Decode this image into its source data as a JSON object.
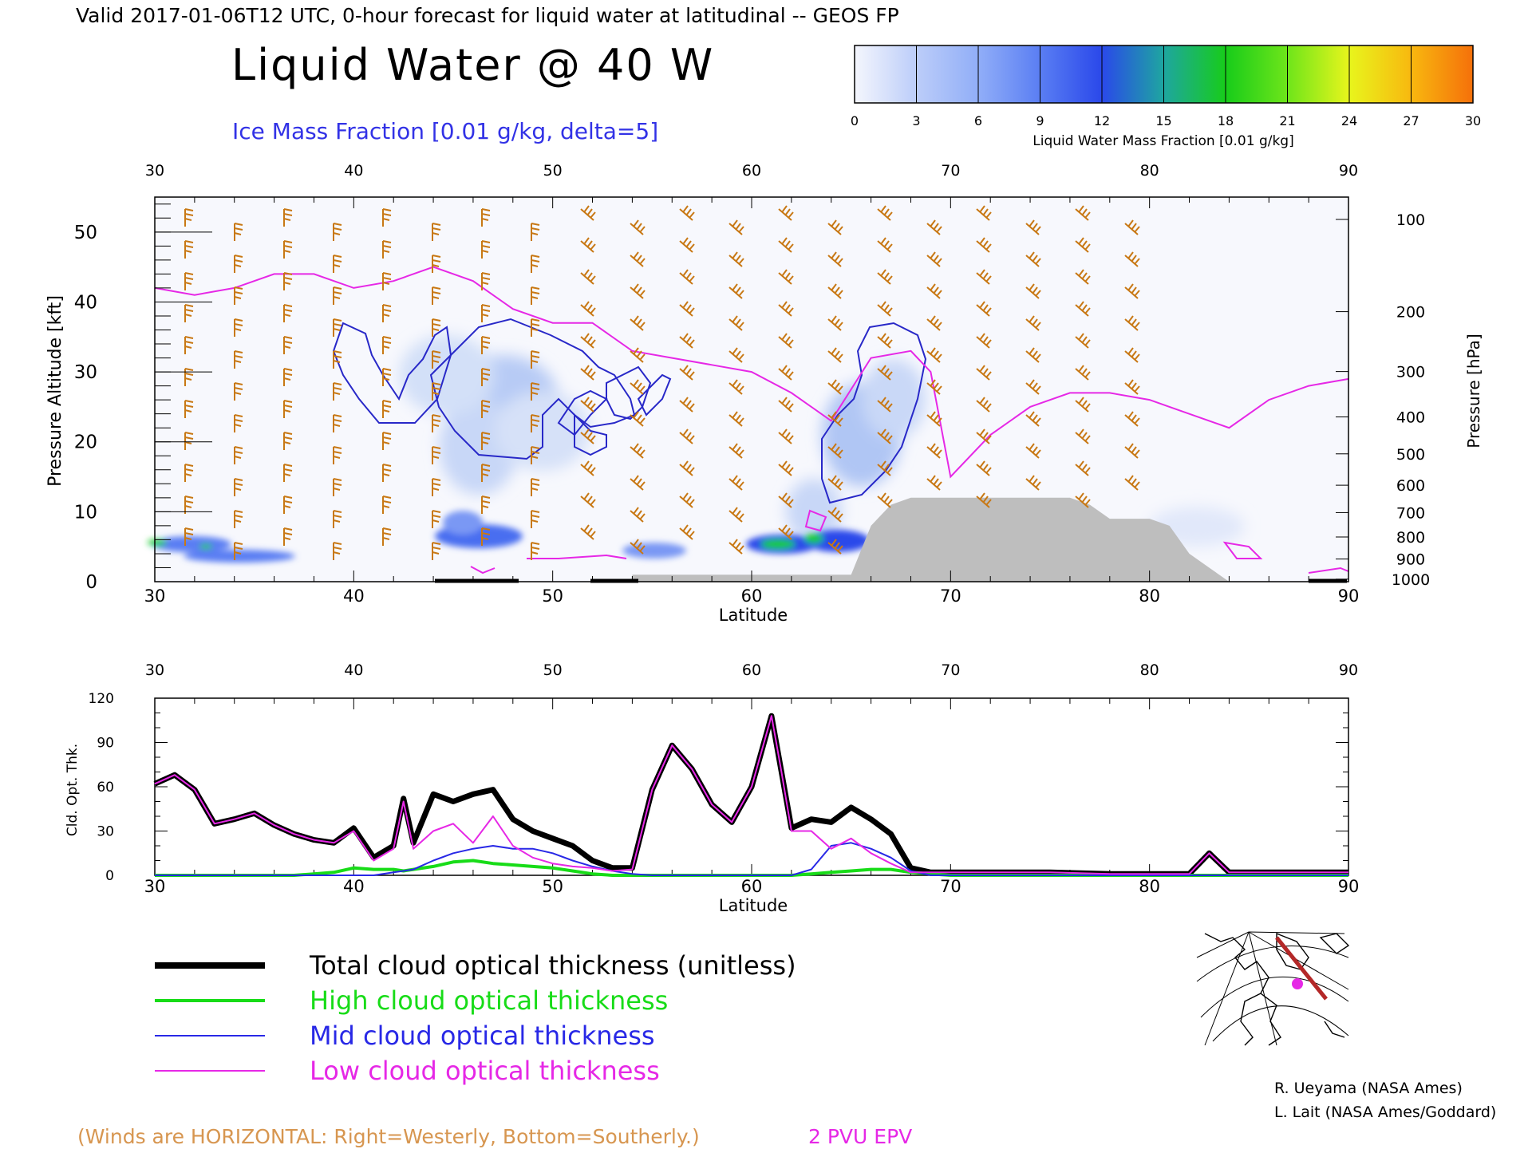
{
  "header": {
    "valid_line": "Valid 2017-01-06T12 UTC, 0-hour forecast for liquid water at latitudinal -- GEOS FP",
    "title": "Liquid Water @ 40 W",
    "subtitle": "Ice Mass Fraction [0.01 g/kg, delta=5]"
  },
  "colorbar": {
    "ticks": [
      "0",
      "3",
      "6",
      "9",
      "12",
      "15",
      "18",
      "21",
      "24",
      "27",
      "30"
    ],
    "label": "Liquid Water Mass Fraction [0.01 g/kg]",
    "colors": [
      "#f4f6fd",
      "#bccdf9",
      "#91aef8",
      "#5a7ef3",
      "#2a48ea",
      "#1ea6a0",
      "#17cc1a",
      "#6ee51a",
      "#e8f51c",
      "#f8b80f",
      "#f5700a"
    ]
  },
  "footer": {
    "wind_note": "(Winds are HORIZONTAL: Right=Westerly, Bottom=Southerly.)",
    "epv_note": "2 PVU EPV",
    "credit_1": "R. Ueyama (NASA Ames)",
    "credit_2": "L. Lait (NASA Ames/Goddard)"
  },
  "legend": [
    {
      "label": "Total cloud optical thickness (unitless)",
      "color": "#000000"
    },
    {
      "label": "High cloud optical thickness",
      "color": "#18dc18"
    },
    {
      "label": "Mid cloud optical thickness",
      "color": "#2828e6"
    },
    {
      "label": "Low cloud optical thickness",
      "color": "#e628e6"
    }
  ],
  "colors": {
    "wind_barbs": "#c87814",
    "epv": "#e628e6",
    "ice_contour": "#2828c8",
    "terrain": "#bebebe"
  },
  "chart_data": [
    {
      "type": "heatmap",
      "xlabel": "Latitude",
      "ylabel": "Pressure Altitude [kft]",
      "ylabel_right": "Pressure [hPa]",
      "x_ticks": [
        "30",
        "40",
        "50",
        "60",
        "70",
        "80",
        "90"
      ],
      "y_ticks": [
        "0",
        "10",
        "20",
        "30",
        "40",
        "50"
      ],
      "pressure_ticks": [
        "100",
        "200",
        "300",
        "400",
        "500",
        "600",
        "700",
        "800",
        "900",
        "1000"
      ],
      "xlim": [
        30,
        90
      ],
      "ylim": [
        0,
        55
      ],
      "epv_2pvu_kft": [
        [
          30,
          42
        ],
        [
          32,
          41
        ],
        [
          34,
          42
        ],
        [
          36,
          44
        ],
        [
          38,
          44
        ],
        [
          40,
          42
        ],
        [
          42,
          43
        ],
        [
          44,
          45
        ],
        [
          46,
          43
        ],
        [
          48,
          39
        ],
        [
          50,
          37
        ],
        [
          52,
          37
        ],
        [
          54,
          33
        ],
        [
          56,
          32
        ],
        [
          58,
          31
        ],
        [
          60,
          30
        ],
        [
          62,
          27
        ],
        [
          64,
          23
        ],
        [
          66,
          32
        ],
        [
          68,
          33
        ],
        [
          69,
          30
        ],
        [
          70,
          15
        ],
        [
          72,
          21
        ],
        [
          74,
          25
        ],
        [
          76,
          27
        ],
        [
          78,
          27
        ],
        [
          80,
          26
        ],
        [
          82,
          24
        ],
        [
          84,
          22
        ],
        [
          86,
          26
        ],
        [
          88,
          28
        ],
        [
          90,
          29
        ]
      ],
      "terrain_kft": [
        [
          54,
          1
        ],
        [
          65,
          1
        ],
        [
          66,
          8
        ],
        [
          67,
          11
        ],
        [
          68,
          12
        ],
        [
          76,
          12
        ],
        [
          77,
          11
        ],
        [
          78,
          9
        ],
        [
          80,
          9
        ],
        [
          81,
          8
        ],
        [
          82,
          4
        ],
        [
          83,
          2
        ],
        [
          84,
          0
        ]
      ]
    },
    {
      "type": "line",
      "xlabel": "Latitude",
      "ylabel": "Cld. Opt. Thk.",
      "x_ticks": [
        "30",
        "40",
        "50",
        "60",
        "70",
        "80",
        "90"
      ],
      "y_ticks": [
        "0",
        "30",
        "60",
        "90",
        "120"
      ],
      "xlim": [
        30,
        90
      ],
      "ylim": [
        0,
        120
      ],
      "x": [
        30,
        31,
        32,
        33,
        34,
        35,
        36,
        37,
        38,
        39,
        40,
        41,
        42,
        42.5,
        43,
        44,
        45,
        46,
        47,
        48,
        49,
        50,
        51,
        52,
        53,
        54,
        55,
        56,
        57,
        58,
        59,
        60,
        61,
        61.5,
        62,
        63,
        64,
        65,
        66,
        67,
        68,
        69,
        70,
        72,
        75,
        78,
        80,
        82,
        83,
        84,
        86,
        88,
        90
      ],
      "series": [
        {
          "name": "Total cloud optical thickness (unitless)",
          "color": "#000000",
          "values": [
            62,
            68,
            58,
            35,
            38,
            42,
            34,
            28,
            24,
            22,
            32,
            12,
            20,
            52,
            22,
            55,
            50,
            55,
            58,
            38,
            30,
            25,
            20,
            10,
            5,
            5,
            58,
            88,
            72,
            48,
            36,
            60,
            108,
            70,
            32,
            38,
            36,
            46,
            38,
            28,
            5,
            2,
            2,
            2,
            2,
            1,
            1,
            1,
            15,
            2,
            2,
            2,
            2
          ]
        },
        {
          "name": "High cloud optical thickness",
          "color": "#18dc18",
          "values": [
            0,
            0,
            0,
            0,
            0,
            0,
            0,
            0,
            1,
            2,
            5,
            4,
            4,
            3,
            4,
            6,
            9,
            10,
            8,
            7,
            6,
            5,
            3,
            1,
            0,
            0,
            0,
            0,
            0,
            0,
            0,
            0,
            0,
            0,
            0,
            1,
            2,
            3,
            4,
            4,
            2,
            1,
            0,
            0,
            0,
            0,
            0,
            0,
            0,
            0,
            0,
            0,
            0
          ]
        },
        {
          "name": "Mid cloud optical thickness",
          "color": "#2828e6",
          "values": [
            0,
            0,
            0,
            0,
            0,
            0,
            0,
            0,
            0,
            0,
            0,
            0,
            2,
            3,
            4,
            10,
            15,
            18,
            20,
            18,
            18,
            15,
            10,
            6,
            3,
            1,
            0,
            0,
            0,
            0,
            0,
            0,
            0,
            0,
            0,
            4,
            20,
            22,
            18,
            12,
            3,
            0,
            0,
            0,
            0,
            0,
            0,
            0,
            0,
            0,
            0,
            0,
            0
          ]
        },
        {
          "name": "Low cloud optical thickness",
          "color": "#e628e6",
          "values": [
            62,
            68,
            58,
            35,
            38,
            42,
            34,
            28,
            24,
            22,
            30,
            10,
            18,
            50,
            18,
            30,
            35,
            22,
            40,
            20,
            12,
            8,
            6,
            5,
            3,
            4,
            58,
            88,
            72,
            48,
            36,
            60,
            108,
            70,
            30,
            30,
            18,
            25,
            15,
            8,
            2,
            2,
            2,
            2,
            2,
            1,
            1,
            1,
            15,
            2,
            2,
            2,
            2
          ]
        }
      ]
    }
  ]
}
